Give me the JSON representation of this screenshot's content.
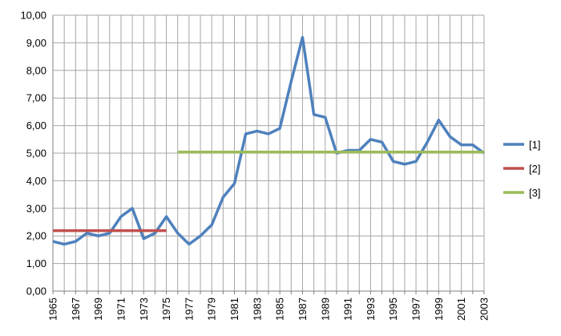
{
  "chart_data": {
    "type": "line",
    "title": "",
    "xlabel": "",
    "ylabel": "",
    "x": [
      1965,
      1966,
      1967,
      1968,
      1969,
      1970,
      1971,
      1972,
      1973,
      1974,
      1975,
      1976,
      1977,
      1978,
      1979,
      1980,
      1981,
      1982,
      1983,
      1984,
      1985,
      1986,
      1987,
      1988,
      1989,
      1990,
      1991,
      1992,
      1993,
      1994,
      1995,
      1996,
      1997,
      1998,
      1999,
      2000,
      2001,
      2002,
      2003
    ],
    "x_tick_labels": [
      "1965",
      "1967",
      "1969",
      "1971",
      "1973",
      "1975",
      "1977",
      "1979",
      "1981",
      "1983",
      "1985",
      "1987",
      "1989",
      "1991",
      "1993",
      "1995",
      "1997",
      "1999",
      "2001",
      "2003"
    ],
    "y_tick_labels": [
      "0,00",
      "1,00",
      "2,00",
      "3,00",
      "4,00",
      "5,00",
      "6,00",
      "7,00",
      "8,00",
      "9,00",
      "10,00"
    ],
    "ylim": [
      0,
      10
    ],
    "grid": true,
    "legend_position": "right",
    "series": [
      {
        "name": "[1]",
        "color": "#4F81BD",
        "x": [
          1965,
          1966,
          1967,
          1968,
          1969,
          1970,
          1971,
          1972,
          1973,
          1974,
          1975,
          1976,
          1977,
          1978,
          1979,
          1980,
          1981,
          1982,
          1983,
          1984,
          1985,
          1986,
          1987,
          1988,
          1989,
          1990,
          1991,
          1992,
          1993,
          1994,
          1995,
          1996,
          1997,
          1998,
          1999,
          2000,
          2001,
          2002,
          2003
        ],
        "values": [
          1.8,
          1.7,
          1.8,
          2.1,
          2.0,
          2.1,
          2.7,
          3.0,
          1.9,
          2.1,
          2.7,
          2.1,
          1.7,
          2.0,
          2.4,
          3.4,
          3.9,
          5.7,
          5.8,
          5.7,
          5.9,
          7.6,
          9.2,
          6.4,
          6.3,
          5.0,
          5.1,
          5.1,
          5.5,
          5.4,
          4.7,
          4.6,
          4.7,
          5.4,
          6.2,
          5.6,
          5.3,
          5.3,
          5.0
        ]
      },
      {
        "name": "[2]",
        "color": "#C0504D",
        "x": [
          1965,
          1966,
          1967,
          1968,
          1969,
          1970,
          1971,
          1972,
          1973,
          1974,
          1975
        ],
        "values": [
          2.19,
          2.19,
          2.19,
          2.19,
          2.19,
          2.19,
          2.19,
          2.19,
          2.19,
          2.19,
          2.19
        ]
      },
      {
        "name": "[3]",
        "color": "#9BBB59",
        "x": [
          1976,
          1977,
          1978,
          1979,
          1980,
          1981,
          1982,
          1983,
          1984,
          1985,
          1986,
          1987,
          1988,
          1989,
          1990,
          1991,
          1992,
          1993,
          1994,
          1995,
          1996,
          1997,
          1998,
          1999,
          2000,
          2001,
          2002,
          2003
        ],
        "values": [
          5.04,
          5.04,
          5.04,
          5.04,
          5.04,
          5.04,
          5.04,
          5.04,
          5.04,
          5.04,
          5.04,
          5.04,
          5.04,
          5.04,
          5.04,
          5.04,
          5.04,
          5.04,
          5.04,
          5.04,
          5.04,
          5.04,
          5.04,
          5.04,
          5.04,
          5.04,
          5.04,
          5.04
        ]
      }
    ]
  }
}
